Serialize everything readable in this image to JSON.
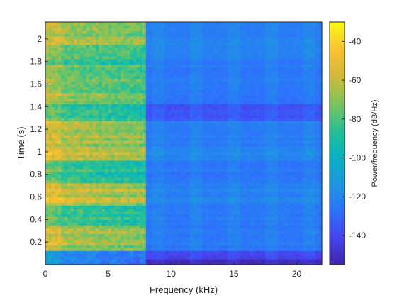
{
  "chart_data": {
    "type": "heatmap",
    "title": "",
    "xlabel": "Frequency (kHz)",
    "ylabel": "Time (s)",
    "colorbar_label": "Power/frequency (dB/Hz)",
    "xlim": [
      0,
      22
    ],
    "ylim": [
      0,
      2.15
    ],
    "x_ticks": [
      0,
      5,
      10,
      15,
      20
    ],
    "y_ticks": [
      0.2,
      0.4,
      0.6,
      0.8,
      1,
      1.2,
      1.4,
      1.6,
      1.8,
      2
    ],
    "colorbar_range": [
      -155,
      -30
    ],
    "colorbar_ticks": [
      -40,
      -60,
      -80,
      -100,
      -120,
      -140
    ],
    "colormap": [
      "#3e26a8",
      "#4743f0",
      "#2d72fc",
      "#1e97e1",
      "#05b3c2",
      "#28c193",
      "#7fc45d",
      "#d2b939",
      "#fcc231",
      "#f9fb0e"
    ],
    "time_bands": [
      {
        "t0": 0.0,
        "t1": 0.05,
        "low_dB": -118,
        "high_dB": -152
      },
      {
        "t0": 0.05,
        "t1": 0.12,
        "low_dB": -112,
        "high_dB": -140
      },
      {
        "t0": 0.12,
        "t1": 0.36,
        "low_dB": -62,
        "high_dB": -125
      },
      {
        "t0": 0.36,
        "t1": 0.52,
        "low_dB": -80,
        "high_dB": -124
      },
      {
        "t0": 0.52,
        "t1": 0.72,
        "low_dB": -58,
        "high_dB": -122
      },
      {
        "t0": 0.72,
        "t1": 0.92,
        "low_dB": -82,
        "high_dB": -126
      },
      {
        "t0": 0.92,
        "t1": 1.05,
        "low_dB": -55,
        "high_dB": -120
      },
      {
        "t0": 1.05,
        "t1": 1.28,
        "low_dB": -62,
        "high_dB": -124
      },
      {
        "t0": 1.28,
        "t1": 1.42,
        "low_dB": -78,
        "high_dB": -135
      },
      {
        "t0": 1.42,
        "t1": 1.52,
        "low_dB": -70,
        "high_dB": -128
      },
      {
        "t0": 1.52,
        "t1": 1.78,
        "low_dB": -72,
        "high_dB": -125
      },
      {
        "t0": 1.78,
        "t1": 1.95,
        "low_dB": -80,
        "high_dB": -124
      },
      {
        "t0": 1.95,
        "t1": 2.15,
        "low_dB": -62,
        "high_dB": -122
      }
    ],
    "cutoff_frequency_khz": 8
  }
}
